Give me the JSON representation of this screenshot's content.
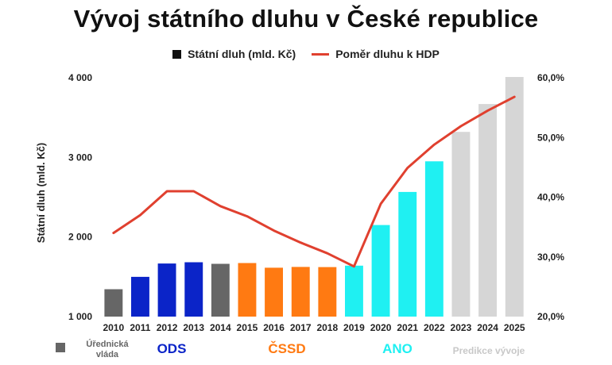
{
  "title": "Vývoj státního dluhu v České republice",
  "colors": {
    "grey": "#666666",
    "blue": "#0b24c8",
    "orange": "#ff7a12",
    "cyan": "#1ff0f2",
    "lightgrey": "#d6d6d6",
    "line": "#e0402f"
  },
  "chart_data": {
    "type": "bar",
    "title": "Vývoj státního dluhu v České republice",
    "categories": [
      "2010",
      "2011",
      "2012",
      "2013",
      "2014",
      "2015",
      "2016",
      "2017",
      "2018",
      "2019",
      "2020",
      "2021",
      "2022",
      "2023",
      "2024",
      "2025"
    ],
    "bar_colors": [
      "grey",
      "blue",
      "blue",
      "blue",
      "grey",
      "orange",
      "orange",
      "orange",
      "orange",
      "cyan",
      "cyan",
      "cyan",
      "cyan",
      "lightgrey",
      "lightgrey",
      "lightgrey"
    ],
    "series": [
      {
        "name": "Státní dluh (mld. Kč)",
        "type": "bar",
        "axis": "left",
        "values": [
          1344,
          1499,
          1667,
          1683,
          1663,
          1673,
          1614,
          1624,
          1622,
          1640,
          2150,
          2566,
          2950,
          3320,
          3670,
          4010
        ]
      },
      {
        "name": "Poměr dluhu k HDP",
        "type": "line",
        "axis": "right",
        "values": [
          34.0,
          37.0,
          41.0,
          41.0,
          38.5,
          36.8,
          34.4,
          32.4,
          30.6,
          28.4,
          38.9,
          44.9,
          48.8,
          51.9,
          54.5,
          56.8
        ]
      }
    ],
    "ylabel": "Státní dluh (mld. Kč)",
    "ylim": [
      1000,
      4000
    ],
    "yticks": [
      "1 000",
      "2 000",
      "3 000",
      "4 000"
    ],
    "ylim_right": [
      20,
      60
    ],
    "yticks_right": [
      "20,0%",
      "30,0%",
      "40,0%",
      "50,0%",
      "60,0%"
    ],
    "grid": false,
    "legend_position": "top-center",
    "groups": [
      {
        "label": "Úřednická vláda",
        "color": "grey"
      },
      {
        "label": "ODS",
        "color": "blue"
      },
      {
        "label": "ČSSD",
        "color": "orange"
      },
      {
        "label": "ANO",
        "color": "cyan"
      },
      {
        "label": "Predikce vývoje",
        "color": "lightgrey"
      }
    ]
  }
}
